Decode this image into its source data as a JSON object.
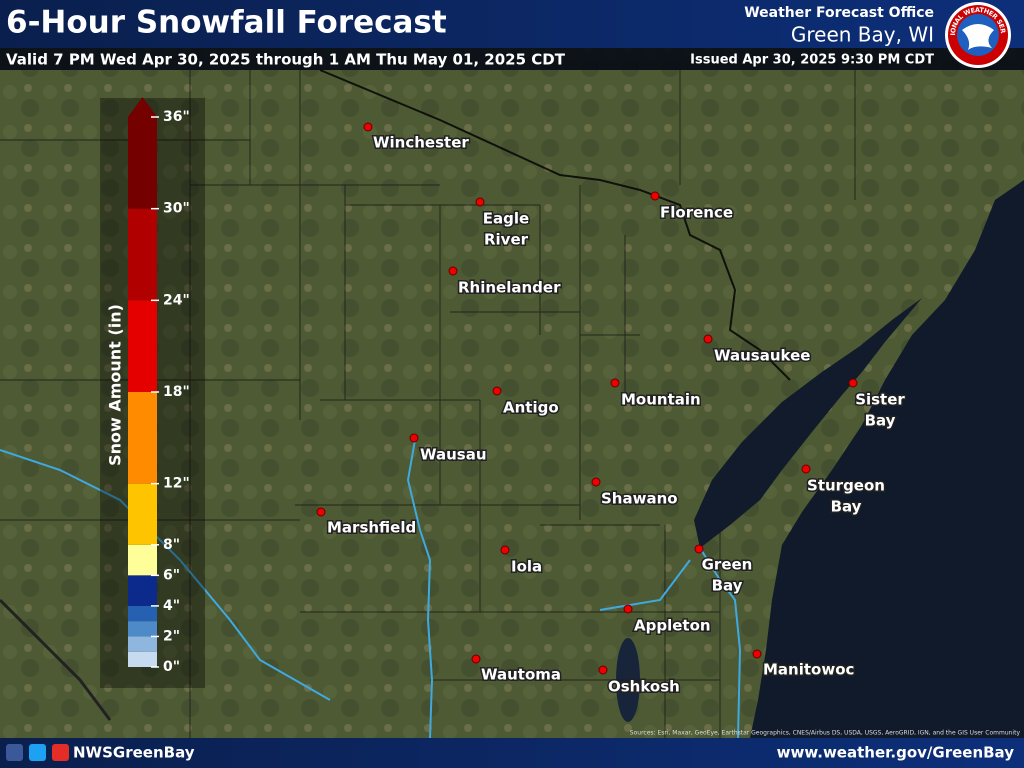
{
  "header": {
    "title": "6-Hour Snowfall Forecast",
    "valid": "Valid 7 PM Wed Apr 30, 2025 through 1 AM Thu May 01, 2025 CDT",
    "office_line": "Weather Forecast Office",
    "office": "Green Bay, WI",
    "issued": "Issued Apr 30, 2025 9:30 PM CDT",
    "logo_text": "NATIONAL WEATHER SERVICE"
  },
  "legend": {
    "title": "Snow Amount (in)",
    "range": [
      0,
      36
    ],
    "ticks": [
      {
        "value": 0,
        "label": "0\""
      },
      {
        "value": 2,
        "label": "2\""
      },
      {
        "value": 4,
        "label": "4\""
      },
      {
        "value": 6,
        "label": "6\""
      },
      {
        "value": 8,
        "label": "8\""
      },
      {
        "value": 12,
        "label": "12\""
      },
      {
        "value": 18,
        "label": "18\""
      },
      {
        "value": 24,
        "label": "24\""
      },
      {
        "value": 30,
        "label": "30\""
      },
      {
        "value": 36,
        "label": "36\""
      }
    ],
    "bins": [
      0,
      1,
      2,
      3,
      4,
      6,
      8,
      12,
      18,
      24,
      30,
      36
    ],
    "colors": [
      "#c6dbef",
      "#8fb6de",
      "#4f8ac8",
      "#2660b0",
      "#0b2a8c",
      "#ffff99",
      "#ffc400",
      "#ff8c00",
      "#e50000",
      "#b00000",
      "#740000"
    ]
  },
  "cities": [
    {
      "lines": [
        "Winchester"
      ]
    },
    {
      "lines": [
        "Eagle",
        "River"
      ]
    },
    {
      "lines": [
        "Florence"
      ]
    },
    {
      "lines": [
        "Rhinelander"
      ]
    },
    {
      "lines": [
        "Wausaukee"
      ]
    },
    {
      "lines": [
        "Antigo"
      ]
    },
    {
      "lines": [
        "Mountain"
      ]
    },
    {
      "lines": [
        "Sister",
        "Bay"
      ]
    },
    {
      "lines": [
        "Wausau"
      ]
    },
    {
      "lines": [
        "Sturgeon",
        "Bay"
      ]
    },
    {
      "lines": [
        "Shawano"
      ]
    },
    {
      "lines": [
        "Marshfield"
      ]
    },
    {
      "lines": [
        "Iola"
      ]
    },
    {
      "lines": [
        "Green",
        "Bay"
      ]
    },
    {
      "lines": [
        "Appleton"
      ]
    },
    {
      "lines": [
        "Wautoma"
      ]
    },
    {
      "lines": [
        "Manitowoc"
      ]
    },
    {
      "lines": [
        "Oshkosh"
      ]
    }
  ],
  "footer": {
    "social": "NWSGreenBay",
    "url": "www.weather.gov/GreenBay",
    "sources": "Sources: Esri, Maxar, GeoEye, Earthstar Geographics, CNES/Airbus DS, USDA, USGS, AeroGRID, IGN, and the GIS User Community"
  }
}
